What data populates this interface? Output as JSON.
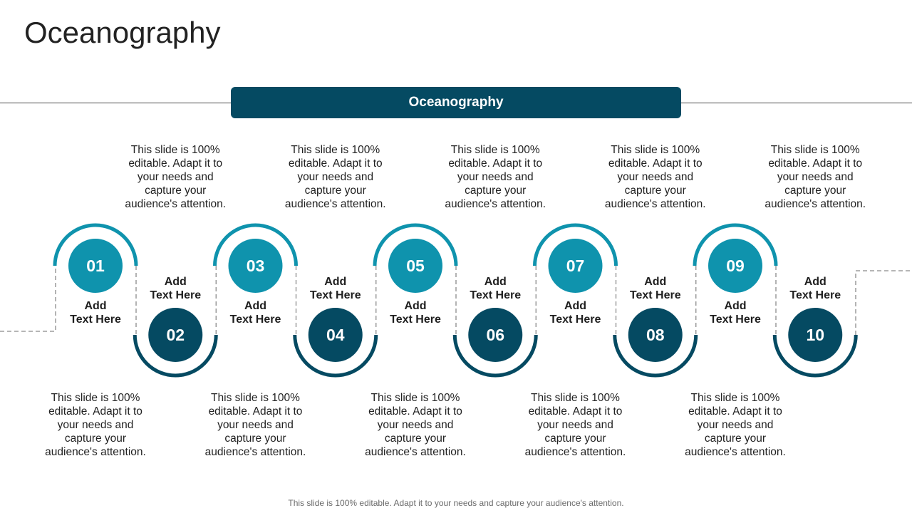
{
  "title": "Oceanography",
  "banner": "Oceanography",
  "colors": {
    "teal": "#0f93ad",
    "navy": "#054a62",
    "dash": "#8a8a8a"
  },
  "steps": [
    {
      "number": "01",
      "label": "Add\nText Here",
      "description": "This slide is 100% editable. Adapt it to your needs and capture your audience's attention."
    },
    {
      "number": "02",
      "label": "Add\nText Here",
      "description": "This slide is 100% editable. Adapt it to your needs and capture your audience's attention."
    },
    {
      "number": "03",
      "label": "Add\nText Here",
      "description": "This slide is 100% editable. Adapt it to your needs and capture your audience's attention."
    },
    {
      "number": "04",
      "label": "Add\nText Here",
      "description": "This slide is 100% editable. Adapt it to your needs and capture your audience's attention."
    },
    {
      "number": "05",
      "label": "Add\nText Here",
      "description": "This slide is 100% editable. Adapt it to your needs and capture your audience's attention."
    },
    {
      "number": "06",
      "label": "Add\nText Here",
      "description": "This slide is 100% editable. Adapt it to your needs and capture your audience's attention."
    },
    {
      "number": "07",
      "label": "Add\nText Here",
      "description": "This slide is 100% editable. Adapt it to your needs and capture your audience's attention."
    },
    {
      "number": "08",
      "label": "Add\nText Here",
      "description": "This slide is 100% editable. Adapt it to your needs and capture your audience's attention."
    },
    {
      "number": "09",
      "label": "Add\nText Here",
      "description": "This slide is 100% editable. Adapt it to your needs and capture your audience's attention."
    },
    {
      "number": "10",
      "label": "Add\nText Here",
      "description": "This slide is 100% editable. Adapt it to your needs and capture your audience's attention."
    }
  ],
  "footnote": "This slide is 100% editable. Adapt it to your needs and capture your audience's attention."
}
